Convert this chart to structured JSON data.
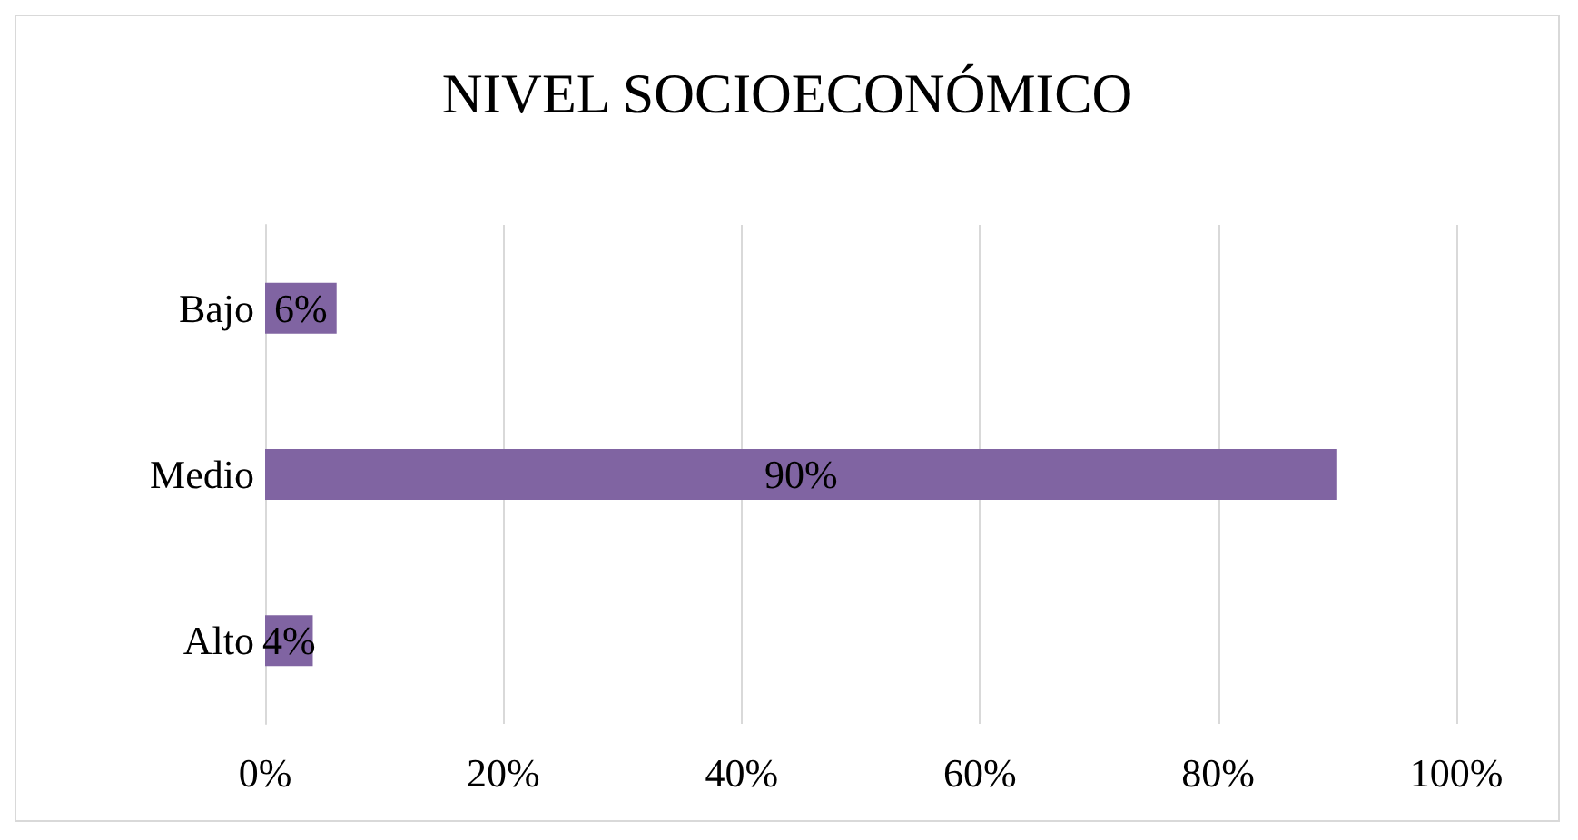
{
  "chart_data": {
    "type": "bar",
    "orientation": "horizontal",
    "title": "NIVEL SOCIOECONÓMICO",
    "categories": [
      "Bajo",
      "Medio",
      "Alto"
    ],
    "values": [
      6,
      90,
      4
    ],
    "value_labels": [
      "6%",
      "90%",
      "4%"
    ],
    "color": "#8064a2",
    "xlim": [
      0,
      100
    ],
    "xticks": [
      {
        "value": 0,
        "label": "0%"
      },
      {
        "value": 20,
        "label": "20%"
      },
      {
        "value": 40,
        "label": "40%"
      },
      {
        "value": 60,
        "label": "60%"
      },
      {
        "value": 80,
        "label": "80%"
      },
      {
        "value": 100,
        "label": "100%"
      }
    ],
    "grid": "x"
  }
}
